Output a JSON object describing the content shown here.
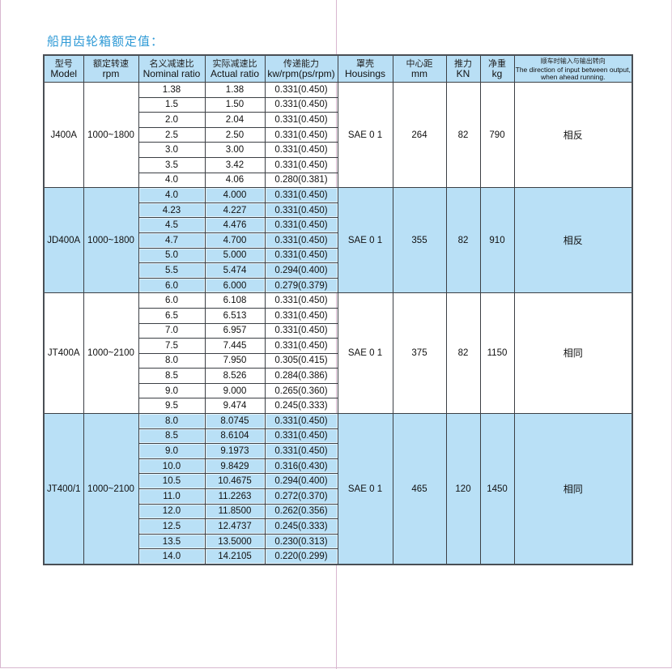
{
  "title": "船用齿轮箱额定值：",
  "headers": [
    {
      "cn": "型号",
      "en": "Model"
    },
    {
      "cn": "额定转速",
      "en": "rpm"
    },
    {
      "cn": "名义减速比",
      "en": "Nominal ratio"
    },
    {
      "cn": "实际减速比",
      "en": "Actual ratio"
    },
    {
      "cn": "传递能力",
      "en": "kw/rpm(ps/rpm)"
    },
    {
      "cn": "罩壳",
      "en": "Housings"
    },
    {
      "cn": "中心距",
      "en": "mm"
    },
    {
      "cn": "推力",
      "en": "KN"
    },
    {
      "cn": "净重",
      "en": "kg"
    },
    {
      "cn": "顺车时输入与输出转向",
      "en": "The direction of input between output, when ahead running."
    }
  ],
  "colors": {
    "header_bg": "#b9dff5",
    "highlight_bg": "#b9e0f6",
    "title": "#2f9ad6"
  },
  "models": [
    {
      "model": "J400A",
      "rpm": "1000~1800",
      "housing": "SAE 0 1",
      "center": "264",
      "thrust": "82",
      "weight": "790",
      "direction": "相反",
      "highlight": false,
      "rows": [
        [
          "1.38",
          "1.38",
          "0.331(0.450)"
        ],
        [
          "1.5",
          "1.50",
          "0.331(0.450)"
        ],
        [
          "2.0",
          "2.04",
          "0.331(0.450)"
        ],
        [
          "2.5",
          "2.50",
          "0.331(0.450)"
        ],
        [
          "3.0",
          "3.00",
          "0.331(0.450)"
        ],
        [
          "3.5",
          "3.42",
          "0.331(0.450)"
        ],
        [
          "4.0",
          "4.06",
          "0.280(0.381)"
        ]
      ]
    },
    {
      "model": "JD400A",
      "rpm": "1000~1800",
      "housing": "SAE 0 1",
      "center": "355",
      "thrust": "82",
      "weight": "910",
      "direction": "相反",
      "highlight": true,
      "rows": [
        [
          "4.0",
          "4.000",
          "0.331(0.450)"
        ],
        [
          "4.23",
          "4.227",
          "0.331(0.450)"
        ],
        [
          "4.5",
          "4.476",
          "0.331(0.450)"
        ],
        [
          "4.7",
          "4.700",
          "0.331(0.450)"
        ],
        [
          "5.0",
          "5.000",
          "0.331(0.450)"
        ],
        [
          "5.5",
          "5.474",
          "0.294(0.400)"
        ],
        [
          "6.0",
          "6.000",
          "0.279(0.379)"
        ]
      ]
    },
    {
      "model": "JT400A",
      "rpm": "1000~2100",
      "housing": "SAE 0 1",
      "center": "375",
      "thrust": "82",
      "weight": "1150",
      "direction": "相同",
      "highlight": false,
      "rows": [
        [
          "6.0",
          "6.108",
          "0.331(0.450)"
        ],
        [
          "6.5",
          "6.513",
          "0.331(0.450)"
        ],
        [
          "7.0",
          "6.957",
          "0.331(0.450)"
        ],
        [
          "7.5",
          "7.445",
          "0.331(0.450)"
        ],
        [
          "8.0",
          "7.950",
          "0.305(0.415)"
        ],
        [
          "8.5",
          "8.526",
          "0.284(0.386)"
        ],
        [
          "9.0",
          "9.000",
          "0.265(0.360)"
        ],
        [
          "9.5",
          "9.474",
          "0.245(0.333)"
        ]
      ]
    },
    {
      "model": "JT400/1",
      "rpm": "1000~2100",
      "housing": "SAE 0 1",
      "center": "465",
      "thrust": "120",
      "weight": "1450",
      "direction": "相同",
      "highlight": true,
      "rows": [
        [
          "8.0",
          "8.0745",
          "0.331(0.450)"
        ],
        [
          "8.5",
          "8.6104",
          "0.331(0.450)"
        ],
        [
          "9.0",
          "9.1973",
          "0.331(0.450)"
        ],
        [
          "10.0",
          "9.8429",
          "0.316(0.430)"
        ],
        [
          "10.5",
          "10.4675",
          "0.294(0.400)"
        ],
        [
          "11.0",
          "11.2263",
          "0.272(0.370)"
        ],
        [
          "12.0",
          "11.8500",
          "0.262(0.356)"
        ],
        [
          "12.5",
          "12.4737",
          "0.245(0.333)"
        ],
        [
          "13.5",
          "13.5000",
          "0.230(0.313)"
        ],
        [
          "14.0",
          "14.2105",
          "0.220(0.299)"
        ]
      ]
    }
  ]
}
